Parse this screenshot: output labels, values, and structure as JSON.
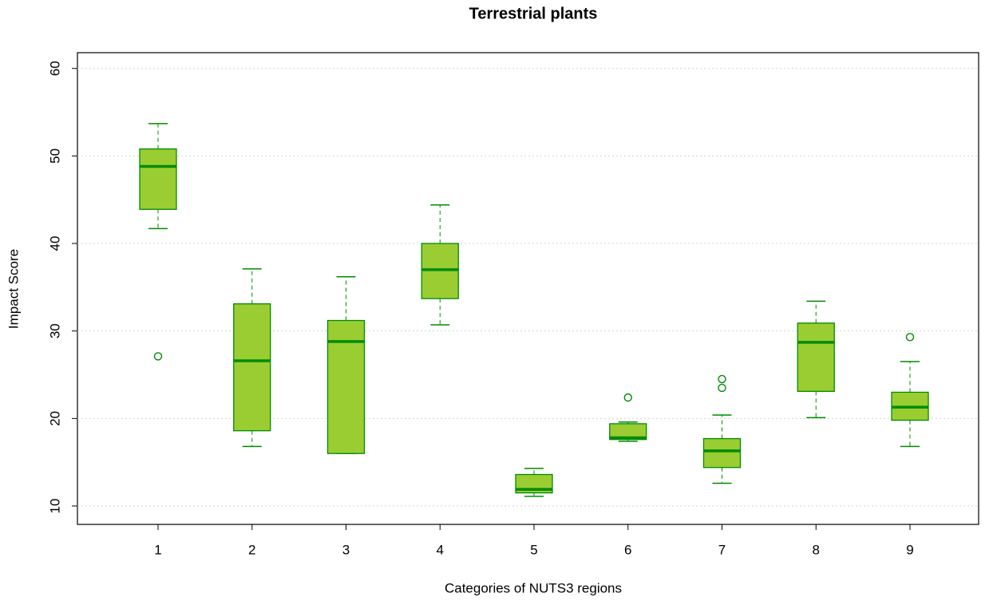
{
  "chart_data": {
    "type": "box",
    "title": "Terrestrial plants",
    "x_label": "Categories of NUTS3 regions",
    "y_label": "Impact Score",
    "categories": [
      "1",
      "2",
      "3",
      "4",
      "5",
      "6",
      "7",
      "8",
      "9"
    ],
    "whisker_low": [
      41.7,
      16.8,
      16.0,
      30.7,
      11.1,
      17.4,
      12.6,
      20.1,
      16.8
    ],
    "q1": [
      43.9,
      18.6,
      16.0,
      33.7,
      11.5,
      17.6,
      14.4,
      23.1,
      19.8
    ],
    "median": [
      48.8,
      26.6,
      28.8,
      37.0,
      11.9,
      17.8,
      16.3,
      28.7,
      21.3
    ],
    "q3": [
      50.8,
      33.1,
      31.2,
      40.0,
      13.6,
      19.4,
      17.7,
      30.9,
      23.0
    ],
    "whisker_high": [
      53.7,
      37.1,
      36.2,
      44.4,
      14.3,
      19.6,
      20.4,
      33.4,
      26.5
    ],
    "outliers": [
      [
        27.1
      ],
      [],
      [],
      [],
      [],
      [
        22.4
      ],
      [
        24.5,
        23.5
      ],
      [],
      [
        29.3
      ]
    ],
    "fill_color": "#9acd32",
    "line_color": "#008b00",
    "ylim": [
      7.9,
      61.8
    ],
    "yticks": [
      10,
      20,
      30,
      40,
      50,
      60
    ],
    "grid": true
  }
}
